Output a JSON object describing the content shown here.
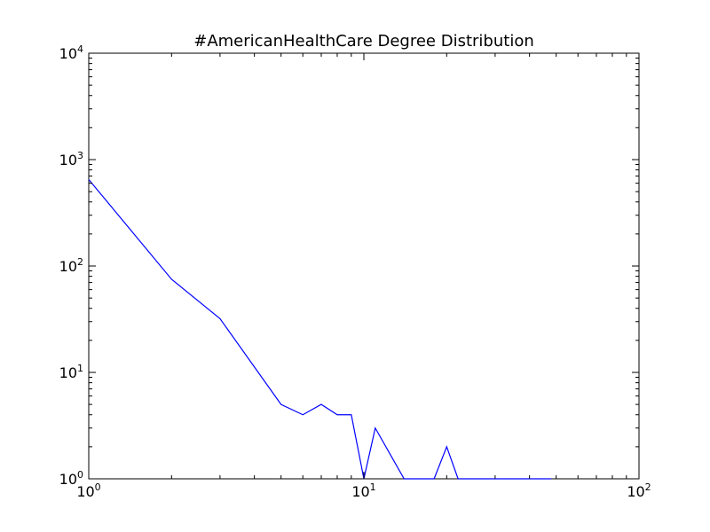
{
  "chart_data": {
    "type": "line",
    "title": "#AmericanHealthCare Degree Distribution",
    "xlabel": "",
    "ylabel": "",
    "xscale": "log",
    "yscale": "log",
    "xlim": [
      1,
      100
    ],
    "ylim": [
      1,
      10000
    ],
    "grid": false,
    "x_ticks": [
      {
        "value": 1,
        "base": "10",
        "exp": "0"
      },
      {
        "value": 10,
        "base": "10",
        "exp": "1"
      },
      {
        "value": 100,
        "base": "10",
        "exp": "2"
      }
    ],
    "y_ticks": [
      {
        "value": 1,
        "base": "10",
        "exp": "0"
      },
      {
        "value": 10,
        "base": "10",
        "exp": "1"
      },
      {
        "value": 100,
        "base": "10",
        "exp": "2"
      },
      {
        "value": 1000,
        "base": "10",
        "exp": "3"
      },
      {
        "value": 10000,
        "base": "10",
        "exp": "4"
      }
    ],
    "series": [
      {
        "color": "#0000ff",
        "x": [
          1,
          2,
          3,
          5,
          6,
          7,
          8,
          9,
          10,
          11,
          14,
          18,
          20,
          22,
          48
        ],
        "y": [
          650,
          75,
          32,
          5,
          4,
          5,
          4,
          4,
          1,
          3,
          1,
          1,
          2,
          1,
          1
        ]
      }
    ]
  }
}
